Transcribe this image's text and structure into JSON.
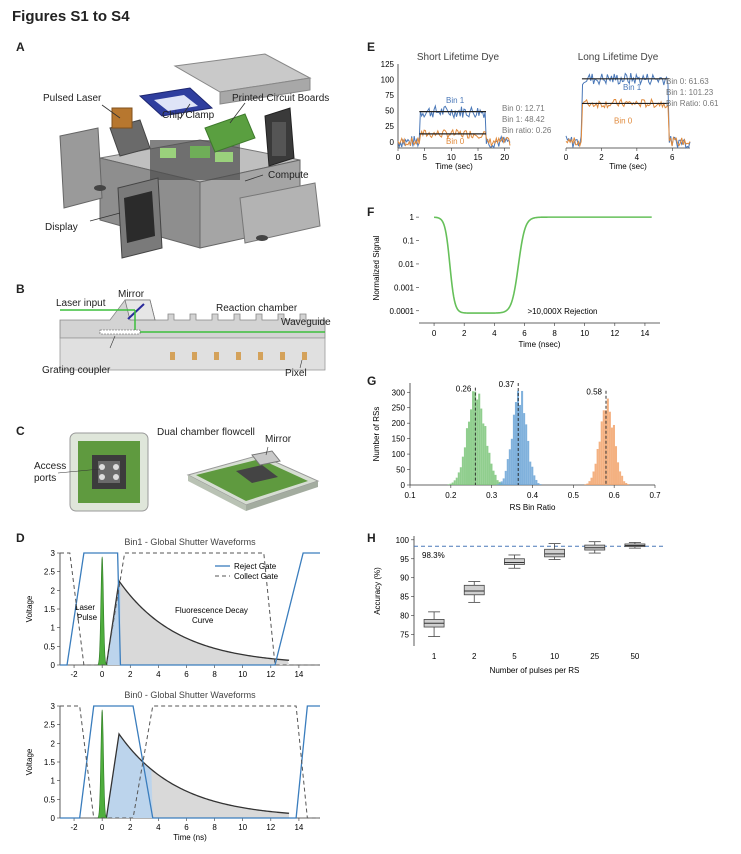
{
  "title": "Figures S1 to S4",
  "panels": {
    "A": {
      "letter": "A",
      "labels": [
        "Pulsed Laser",
        "Chip Clamp",
        "Printed Circuit Boards",
        "Compute",
        "Display"
      ]
    },
    "B": {
      "letter": "B",
      "labels": [
        "Laser input",
        "Mirror",
        "Reaction chamber",
        "Waveguide",
        "Grating coupler",
        "Pixel"
      ]
    },
    "C": {
      "letter": "C",
      "labels": [
        "Access ports",
        "Dual chamber flowcell",
        "Mirror"
      ]
    },
    "D": {
      "letter": "D"
    },
    "E": {
      "letter": "E"
    },
    "F": {
      "letter": "F"
    },
    "G": {
      "letter": "G"
    },
    "H": {
      "letter": "H"
    }
  },
  "chart_data": [
    {
      "id": "D1",
      "type": "line",
      "title": "Bin1 - Global Shutter Waveforms",
      "xlabel": "",
      "ylabel": "Voltage",
      "xlim": [
        -3,
        15.5
      ],
      "ylim": [
        0,
        3
      ],
      "xticks": [
        "-2",
        "0",
        "2",
        "4",
        "6",
        "8",
        "10",
        "12",
        "14"
      ],
      "yticks": [
        "0",
        "0.5",
        "1",
        "1.5",
        "2",
        "2.5",
        "3"
      ],
      "legend": [
        "Reject Gate",
        "Collect Gate"
      ],
      "annotations": [
        "Laser Pulse",
        "Fluorescence Decay Curve"
      ],
      "series": [
        {
          "name": "Reject Gate",
          "x": [
            -3,
            -2.5,
            -1.3,
            1.1,
            1.3,
            12.3,
            14.3,
            15.5
          ],
          "y": [
            0,
            0,
            3,
            3,
            0,
            0,
            3,
            3
          ]
        },
        {
          "name": "Collect Gate",
          "x": [
            -3,
            -2.3,
            -1.3,
            0.3,
            1.6,
            11.5,
            12.3,
            15.5
          ],
          "y": [
            3,
            3,
            0,
            0,
            3,
            3,
            0,
            0
          ]
        }
      ]
    },
    {
      "id": "D2",
      "type": "line",
      "title": "Bin0 - Global Shutter Waveforms",
      "xlabel": "Time (ns)",
      "ylabel": "Voltage",
      "xlim": [
        -3,
        15.5
      ],
      "ylim": [
        0,
        3
      ],
      "xticks": [
        "-2",
        "0",
        "2",
        "4",
        "6",
        "8",
        "10",
        "12",
        "14"
      ],
      "yticks": [
        "0",
        "0.5",
        "1",
        "1.5",
        "2",
        "2.5",
        "3"
      ],
      "series": [
        {
          "name": "Reject Gate",
          "x": [
            -3,
            -1.6,
            -0.6,
            2.2,
            3.6,
            13.8,
            14.6,
            15.5
          ],
          "y": [
            0,
            0,
            3,
            3,
            0,
            0,
            3,
            3
          ]
        },
        {
          "name": "Collect Gate",
          "x": [
            -3,
            -1.6,
            -0.6,
            2.2,
            3.6,
            13.8,
            14.6,
            15.5
          ],
          "y": [
            3,
            3,
            0,
            0,
            3,
            3,
            0,
            0
          ]
        }
      ]
    },
    {
      "id": "E1",
      "type": "line",
      "title": "Short Lifetime Dye",
      "xlabel": "Time (sec)",
      "xlim": [
        0,
        21
      ],
      "ylim": [
        -10,
        125
      ],
      "xticks": [
        "0",
        "5",
        "10",
        "15",
        "20"
      ],
      "yticks": [
        "0",
        "25",
        "50",
        "75",
        "100",
        "125"
      ],
      "series_labels": [
        "Bin 1",
        "Bin 0"
      ],
      "stats": [
        "Bin 0: 12.71",
        "Bin 1: 48.42",
        "Bin ratio: 0.26"
      ],
      "levels": {
        "on_start": 4,
        "on_end": 16.5,
        "bin0": 12.71,
        "bin1": 48.42
      }
    },
    {
      "id": "E2",
      "type": "line",
      "title": "Long Lifetime Dye",
      "xlabel": "Time (sec)",
      "xlim": [
        0,
        7
      ],
      "ylim": [
        -10,
        125
      ],
      "xticks": [
        "0",
        "2",
        "4",
        "6"
      ],
      "series_labels": [
        "Bin 1",
        "Bin 0"
      ],
      "stats": [
        "Bin 0: 61.63",
        "Bin 1: 101.23",
        "Bin Ratio: 0.61"
      ],
      "levels": {
        "on_start": 0.9,
        "on_end": 5.8,
        "bin0": 61.63,
        "bin1": 101.23
      }
    },
    {
      "id": "F",
      "type": "line",
      "xlabel": "Time (nsec)",
      "ylabel": "Normalized Signal",
      "xlim": [
        -1,
        15
      ],
      "ylim_log": [
        3e-05,
        1.5
      ],
      "xticks": [
        "0",
        "2",
        "4",
        "6",
        "8",
        "10",
        "12",
        "14"
      ],
      "yticks": [
        "0.0001",
        "0.001",
        "0.01",
        "0.1",
        "1"
      ],
      "annotations": [
        ">10,000X Rejection"
      ]
    },
    {
      "id": "G",
      "type": "bar",
      "xlabel": "RS Bin Ratio",
      "ylabel": "Number of RSs",
      "xlim": [
        0.1,
        0.7
      ],
      "ylim": [
        0,
        330
      ],
      "xticks": [
        "0.1",
        "0.2",
        "0.3",
        "0.4",
        "0.5",
        "0.6",
        "0.7"
      ],
      "yticks": [
        "0",
        "50",
        "100",
        "150",
        "200",
        "250",
        "300"
      ],
      "series": [
        {
          "name": "green",
          "mean": 0.26,
          "sd": 0.022,
          "peak": 290,
          "color": "#7dc67a"
        },
        {
          "name": "blue",
          "mean": 0.365,
          "sd": 0.017,
          "peak": 305,
          "color": "#6aa3d6"
        },
        {
          "name": "orange",
          "mean": 0.58,
          "sd": 0.017,
          "peak": 280,
          "color": "#f2a36b"
        }
      ],
      "annotations": [
        "0.26",
        "0.37",
        "0.58"
      ]
    },
    {
      "id": "H",
      "type": "box",
      "xlabel": "Number of pulses per RS",
      "ylabel": "Accuracy (%)",
      "ylim": [
        72,
        101
      ],
      "categories": [
        "1",
        "2",
        "5",
        "10",
        "25",
        "50"
      ],
      "yticks": [
        "75",
        "80",
        "85",
        "90",
        "95",
        "100"
      ],
      "reference": 98.3,
      "reference_label": "98.3%",
      "boxes": [
        {
          "min": 74.5,
          "q1": 77,
          "median": 78,
          "q3": 79,
          "max": 81
        },
        {
          "min": 83.5,
          "q1": 85.5,
          "median": 86.5,
          "q3": 88,
          "max": 89
        },
        {
          "min": 92.5,
          "q1": 93.5,
          "median": 94,
          "q3": 95,
          "max": 96
        },
        {
          "min": 94.8,
          "q1": 95.5,
          "median": 96.3,
          "q3": 97.5,
          "max": 99
        },
        {
          "min": 96.5,
          "q1": 97.3,
          "median": 97.9,
          "q3": 98.6,
          "max": 99.5
        },
        {
          "min": 97.8,
          "q1": 98.2,
          "median": 98.5,
          "q3": 98.9,
          "max": 99.3
        }
      ]
    }
  ]
}
